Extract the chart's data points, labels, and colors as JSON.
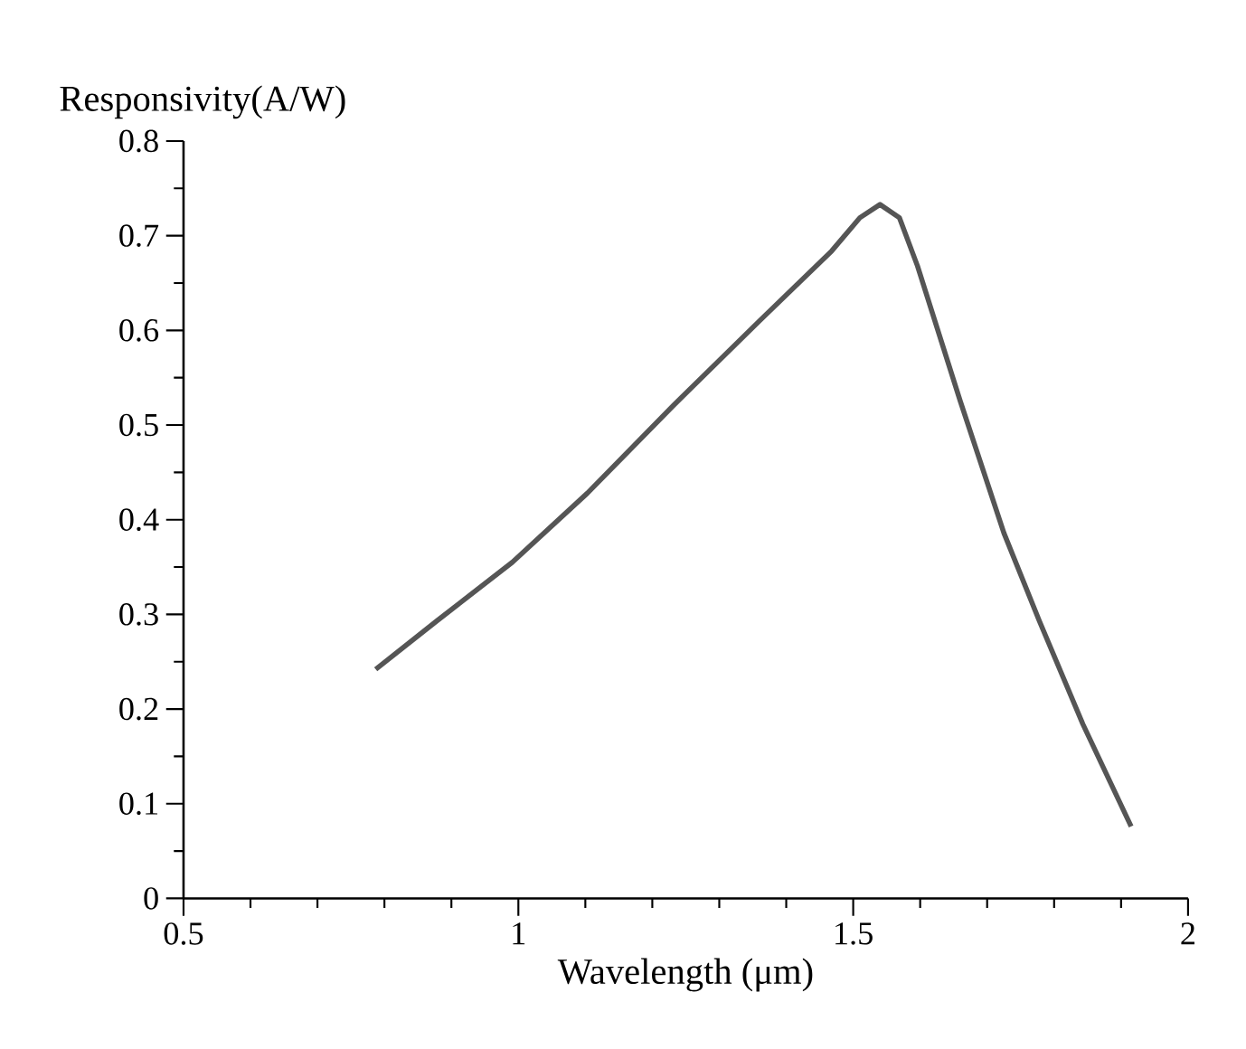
{
  "chart_data": {
    "type": "line",
    "xlabel": "Wavelength (μm)",
    "ylabel": "Responsivity(A/W)",
    "x": [
      0.787,
      0.878,
      0.991,
      1.103,
      1.232,
      1.36,
      1.468,
      1.51,
      1.54,
      1.569,
      1.596,
      1.66,
      1.725,
      1.778,
      1.843,
      1.915
    ],
    "series": [
      {
        "color": "#555555",
        "values": [
          0.242,
          0.293,
          0.355,
          0.428,
          0.521,
          0.61,
          0.684,
          0.719,
          0.733,
          0.719,
          0.668,
          0.525,
          0.386,
          0.293,
          0.184,
          0.076
        ]
      }
    ],
    "xlim": [
      0.5,
      2
    ],
    "ylim": [
      0,
      0.8
    ],
    "xticks": [
      0.5,
      1,
      1.5,
      2
    ],
    "yticks": [
      0,
      0.1,
      0.2,
      0.3,
      0.4,
      0.5,
      0.6,
      0.7,
      0.8
    ],
    "marker": "none",
    "line_style": "solid"
  }
}
